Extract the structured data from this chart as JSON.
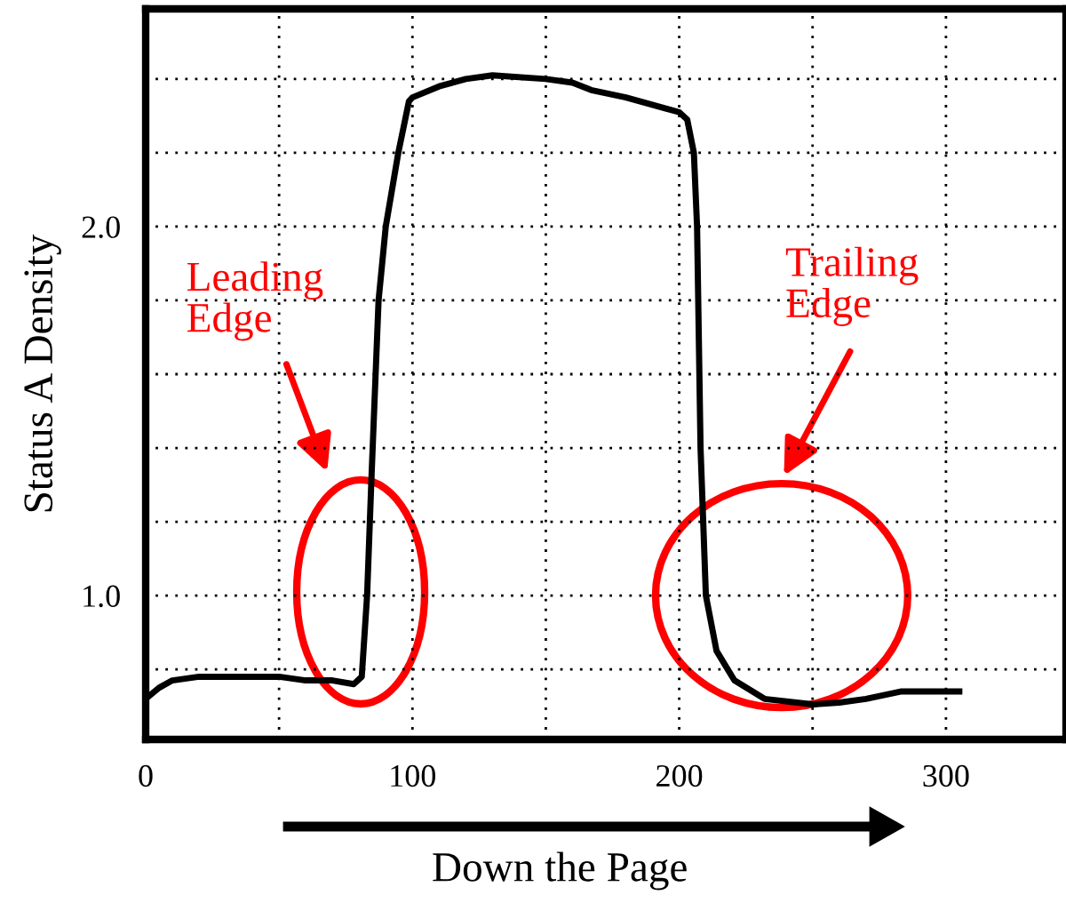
{
  "chart_data": {
    "type": "line",
    "xlabel": "Down the Page",
    "ylabel": "Status A Density",
    "x": [
      0,
      5,
      10,
      20,
      30,
      40,
      50,
      60,
      70,
      78,
      81,
      83,
      84.7,
      87.3,
      90,
      94.7,
      98.7,
      100,
      110,
      120,
      130,
      150,
      160,
      167,
      180,
      195,
      200,
      203,
      205.5,
      206.7,
      208,
      210,
      214,
      220.7,
      232,
      250,
      260,
      270,
      283,
      305
    ],
    "series": [
      {
        "color": "#000000",
        "values": [
          0.72,
          0.75,
          0.77,
          0.78,
          0.78,
          0.78,
          0.78,
          0.77,
          0.77,
          0.76,
          0.78,
          1.0,
          1.33,
          1.8,
          2.0,
          2.2,
          2.34,
          2.35,
          2.38,
          2.4,
          2.41,
          2.4,
          2.39,
          2.37,
          2.35,
          2.32,
          2.31,
          2.29,
          2.2,
          2.0,
          1.4,
          1.0,
          0.85,
          0.77,
          0.72,
          0.705,
          0.71,
          0.72,
          0.74,
          0.74
        ]
      }
    ],
    "xlim": [
      0,
      345
    ],
    "ylim": [
      0.61,
      2.59
    ],
    "xticks": [
      0,
      {
        "value": 50,
        "label": null
      },
      100,
      {
        "value": 150,
        "label": null
      },
      200,
      {
        "value": 250,
        "label": null
      },
      300
    ],
    "yticks": [
      {
        "value": 0.8,
        "label": null
      },
      {
        "value": 1.0,
        "label": "1.0"
      },
      {
        "value": 1.2,
        "label": null
      },
      {
        "value": 1.4,
        "label": null
      },
      {
        "value": 1.6,
        "label": null
      },
      {
        "value": 1.8,
        "label": null
      },
      {
        "value": 2.0,
        "label": "2.0"
      },
      {
        "value": 2.2,
        "label": null
      },
      {
        "value": 2.4,
        "label": null
      }
    ],
    "grid": true,
    "line_style": "solid",
    "marker": "none",
    "annotations": [
      "Leading\nEdge",
      "Trailing\nEdge"
    ]
  }
}
